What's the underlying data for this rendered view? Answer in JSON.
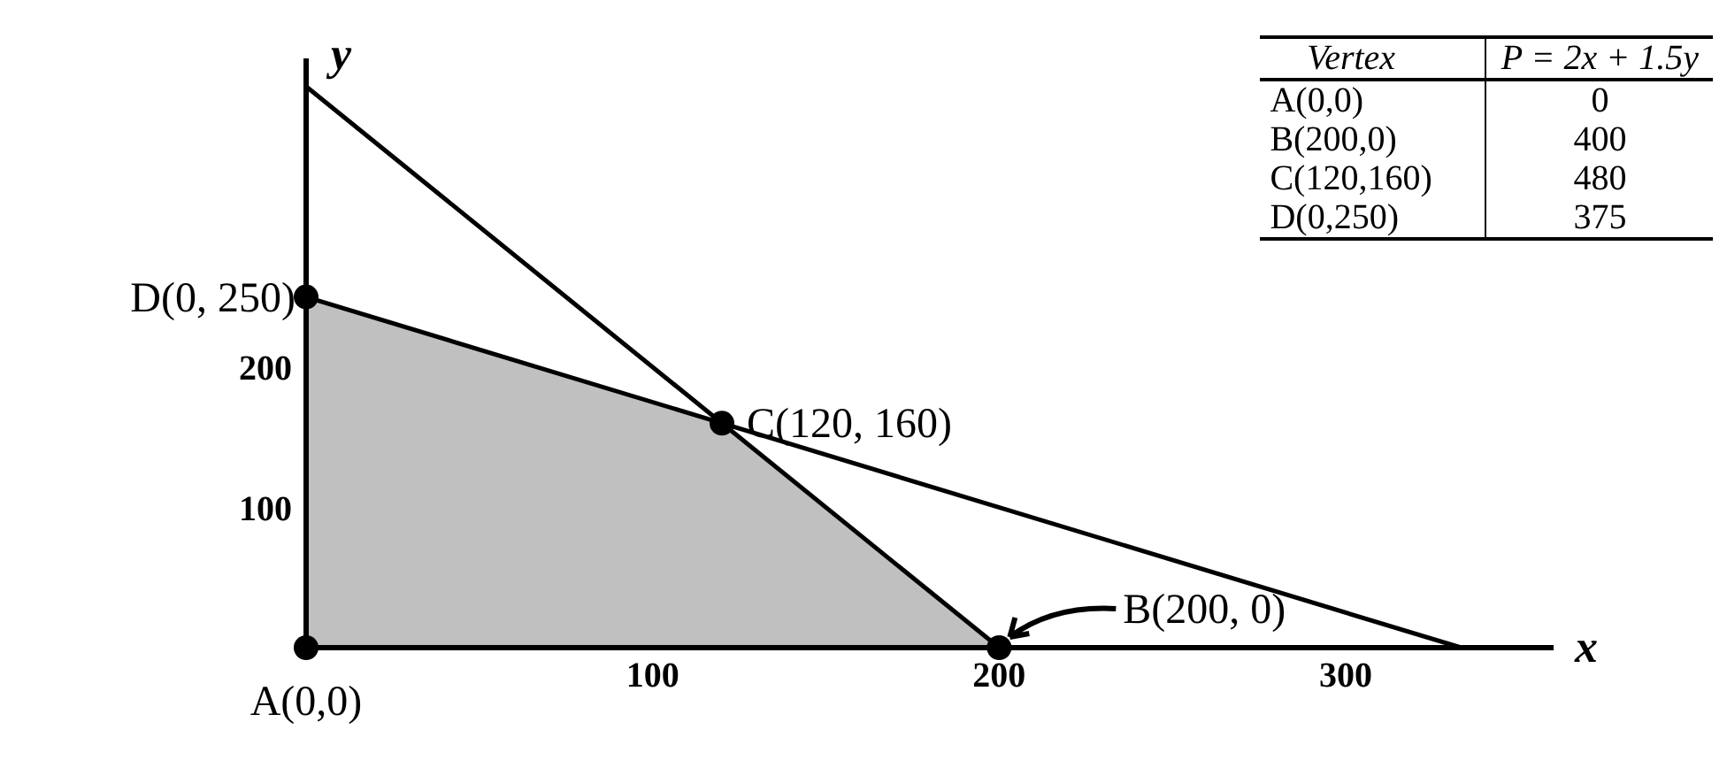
{
  "chart_data": {
    "type": "line",
    "xlabel": "x",
    "ylabel": "y",
    "xlim": [
      0,
      360
    ],
    "ylim": [
      0,
      420
    ],
    "xticks": [
      100,
      200,
      300
    ],
    "yticks": [
      100,
      200
    ],
    "line_style": "solid",
    "series": [
      {
        "type": "area",
        "color": "#c0c0c0",
        "x": [
          0,
          120,
          200
        ],
        "values": [
          250,
          160,
          0
        ]
      },
      {
        "color": "#000000",
        "x": [
          0,
          200
        ],
        "values": [
          400,
          0
        ]
      },
      {
        "color": "#000000",
        "x": [
          0,
          333.33
        ],
        "values": [
          250,
          0
        ]
      },
      {
        "type": "scatter",
        "color": "#000000",
        "x": [
          0,
          200,
          120,
          0
        ],
        "values": [
          0,
          0,
          160,
          250
        ]
      }
    ],
    "annotations": [
      {
        "text": "A(0,0)",
        "x": 0,
        "y": 0
      },
      {
        "text": "B(200, 0)",
        "x": 200,
        "y": 0
      },
      {
        "text": "C(120, 160)",
        "x": 120,
        "y": 160
      },
      {
        "text": "D(0, 250)",
        "x": 0,
        "y": 250
      },
      "Vertex",
      "P = 2x + 1.5y",
      "A(0,0)",
      "0",
      "B(200,0)",
      "400",
      "C(120,160)",
      "480",
      "D(0,250)",
      "375"
    ]
  }
}
